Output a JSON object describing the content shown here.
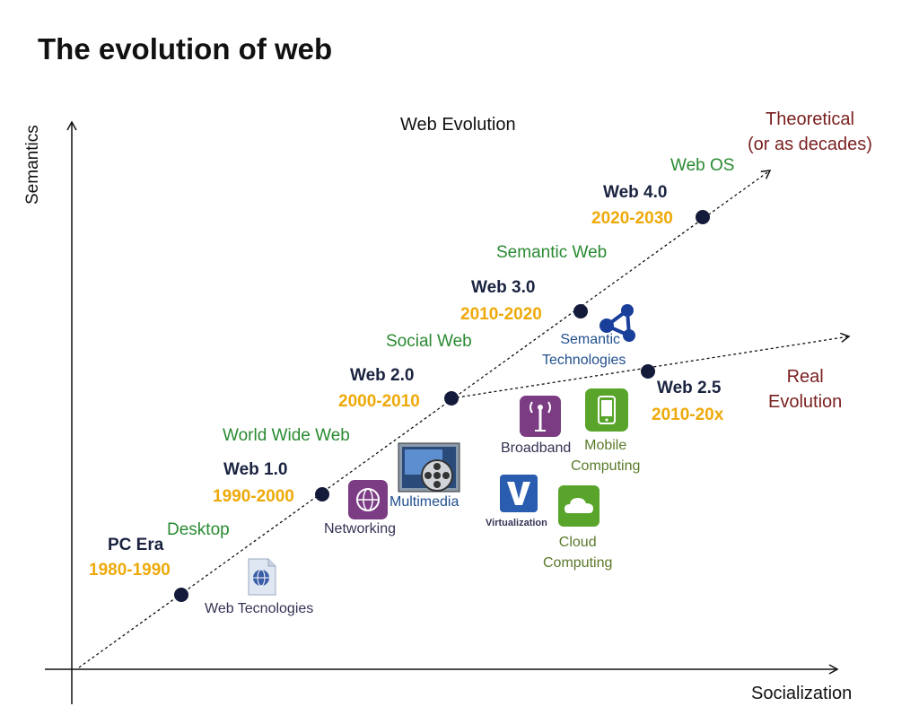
{
  "title": "The evolution of web",
  "diagram_title": "Web Evolution",
  "axes": {
    "y_label": "Semantics",
    "x_label": "Socialization"
  },
  "trends": {
    "theoretical": {
      "line1": "Theoretical",
      "line2": "(or as decades)"
    },
    "real": {
      "line1": "Real",
      "line2": "Evolution"
    }
  },
  "milestones": [
    {
      "era": "PC Era",
      "years": "1980-1990",
      "label": "Desktop"
    },
    {
      "era": "Web 1.0",
      "years": "1990-2000",
      "label": "World Wide Web"
    },
    {
      "era": "Web 2.0",
      "years": "2000-2010",
      "label": "Social Web"
    },
    {
      "era": "Web 3.0",
      "years": "2010-2020",
      "label": "Semantic Web"
    },
    {
      "era": "Web 4.0",
      "years": "2020-2030",
      "label": "Web OS"
    },
    {
      "era": "Web 2.5",
      "years": "2010-20x",
      "label": ""
    }
  ],
  "technologies": {
    "web": "Web Tecnologies",
    "networking": "Networking",
    "multimedia": "Multimedia",
    "broadband": "Broadband",
    "mobile": {
      "line1": "Mobile",
      "line2": "Computing"
    },
    "virtualization": "Virtualization",
    "cloud": {
      "line1": "Cloud",
      "line2": "Computing"
    },
    "semantic": {
      "line1": "Semantic",
      "line2": "Technologies"
    }
  },
  "icons": [
    "web-technologies-icon",
    "networking-icon",
    "multimedia-icon",
    "broadband-icon",
    "mobile-computing-icon",
    "virtualization-icon",
    "cloud-computing-icon",
    "semantic-technologies-icon"
  ],
  "colors": {
    "era": "#1a2340",
    "years": "#eeaa0a",
    "labels": "#2a8a32",
    "trend": "#7a1f1f"
  }
}
